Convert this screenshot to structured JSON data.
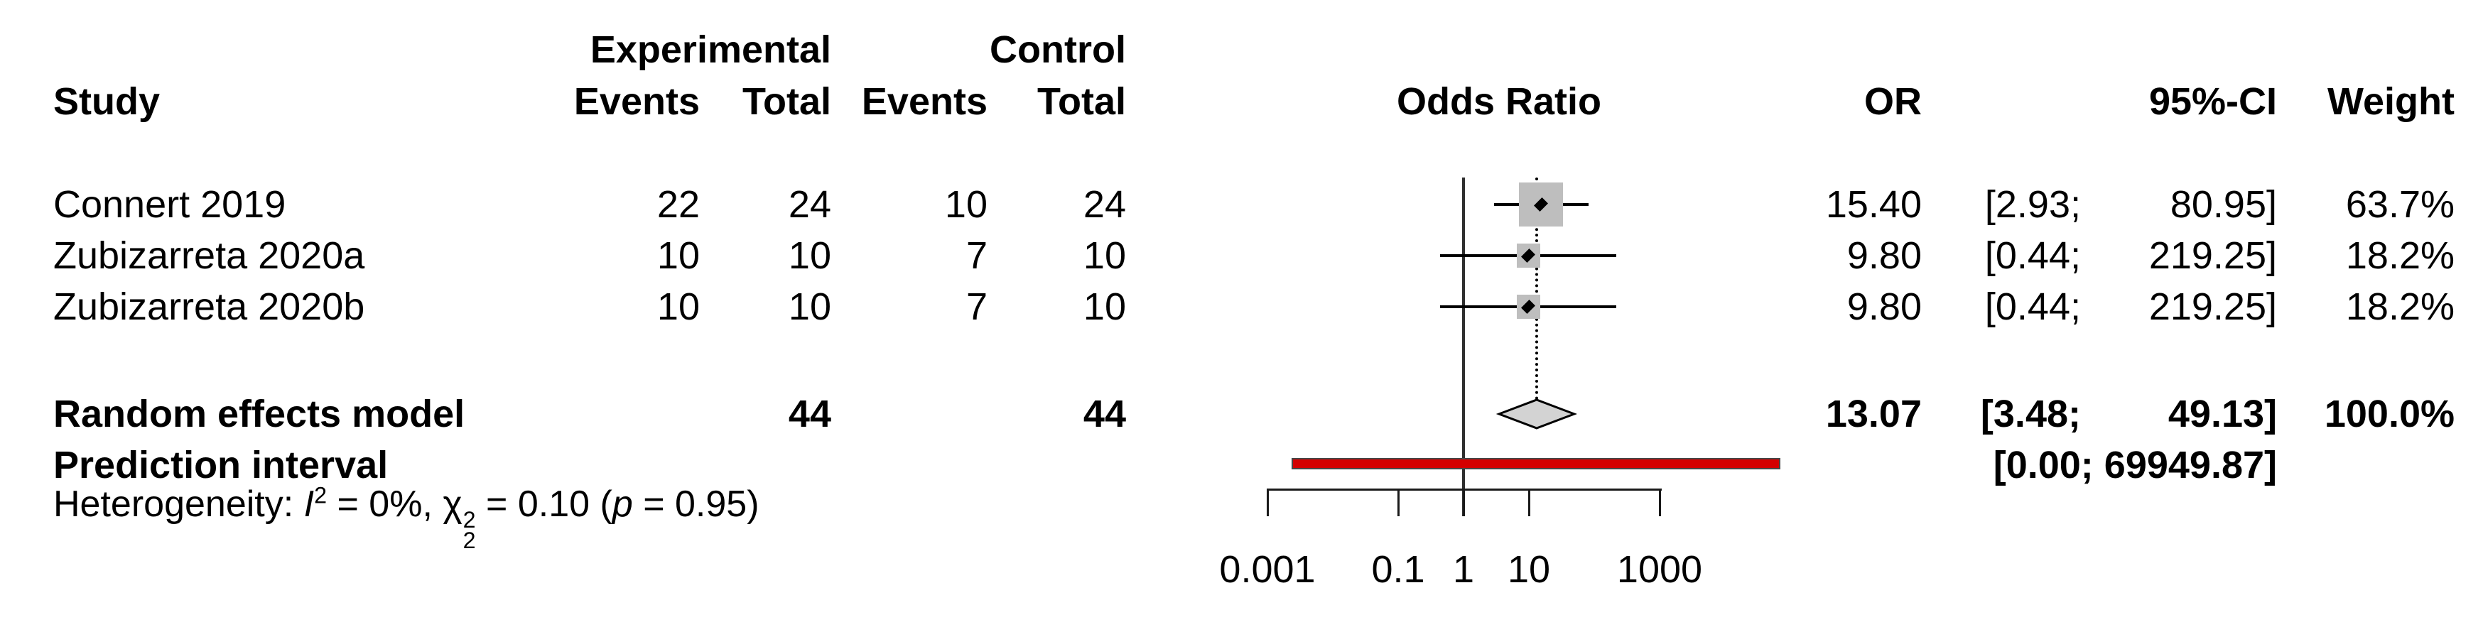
{
  "colors": {
    "background": "#ffffff",
    "text": "#000000",
    "square_fill": "#bebebe",
    "diamond_fill": "#d3d3d3",
    "diamond_border": "#000000",
    "prediction_fill": "#d40000",
    "prediction_border": "#474747",
    "line": "#000000"
  },
  "header": {
    "study": "Study",
    "experimental": "Experimental",
    "control": "Control",
    "exp_events": "Events",
    "exp_total": "Total",
    "ctrl_events": "Events",
    "ctrl_total": "Total",
    "odds_ratio": "Odds Ratio",
    "or": "OR",
    "ci": "95%-CI",
    "weight": "Weight"
  },
  "rows": [
    {
      "label": "Connert 2019",
      "exp_events": "22",
      "exp_total": "24",
      "ctrl_events": "10",
      "ctrl_total": "24",
      "or_text": "15.40",
      "ci_lo_text": "[2.93;",
      "ci_hi_text": "80.95]",
      "weight_text": "63.7%"
    },
    {
      "label": "Zubizarreta 2020a",
      "exp_events": "10",
      "exp_total": "10",
      "ctrl_events": "7",
      "ctrl_total": "10",
      "or_text": "9.80",
      "ci_lo_text": "[0.44;",
      "ci_hi_text": "219.25]",
      "weight_text": "18.2%"
    },
    {
      "label": "Zubizarreta 2020b",
      "exp_events": "10",
      "exp_total": "10",
      "ctrl_events": "7",
      "ctrl_total": "10",
      "or_text": "9.80",
      "ci_lo_text": "[0.44;",
      "ci_hi_text": "219.25]",
      "weight_text": "18.2%"
    }
  ],
  "summary_row": {
    "label": "Random effects model",
    "exp_total": "44",
    "ctrl_total": "44",
    "or_text": "13.07",
    "ci_lo_text": "[3.48;",
    "ci_hi_text": "49.13]",
    "weight_text": "100.0%"
  },
  "prediction_row": {
    "label": "Prediction interval",
    "ci_text": "[0.00; 69949.87]"
  },
  "het": {
    "prefix": "Heterogeneity: ",
    "i": "I",
    "i_sup": "2",
    "seg1": " = 0%, ",
    "chi": "χ",
    "chi_sup": "2",
    "chi_sub": "2",
    "seg2": " = 0.10 (",
    "p": "p",
    "seg3": " = 0.95)"
  },
  "axis_labels": [
    "0.001",
    "0.1",
    "1",
    "10",
    "1000"
  ],
  "chart_data": {
    "type": "forest",
    "scale": "log10",
    "xlabel": "Odds Ratio",
    "axis_ticks": [
      0.001,
      0.1,
      1,
      10,
      1000
    ],
    "xlim": [
      0.001,
      1000
    ],
    "ref_line": 1,
    "studies": [
      {
        "label": "Connert 2019",
        "exp_events": 22,
        "exp_total": 24,
        "ctrl_events": 10,
        "ctrl_total": 24,
        "or": 15.4,
        "ci_low": 2.93,
        "ci_high": 80.95,
        "weight_pct": 63.7
      },
      {
        "label": "Zubizarreta 2020a",
        "exp_events": 10,
        "exp_total": 10,
        "ctrl_events": 7,
        "ctrl_total": 10,
        "or": 9.8,
        "ci_low": 0.44,
        "ci_high": 219.25,
        "weight_pct": 18.2
      },
      {
        "label": "Zubizarreta 2020b",
        "exp_events": 10,
        "exp_total": 10,
        "ctrl_events": 7,
        "ctrl_total": 10,
        "or": 9.8,
        "ci_low": 0.44,
        "ci_high": 219.25,
        "weight_pct": 18.2
      }
    ],
    "summary": {
      "label": "Random effects model",
      "model": "random",
      "exp_total": 44,
      "ctrl_total": 44,
      "or": 13.07,
      "ci_low": 3.48,
      "ci_high": 49.13,
      "weight_pct": 100.0
    },
    "prediction_interval": {
      "label": "Prediction interval",
      "ci_low": 0.0,
      "ci_high": 69949.87
    },
    "heterogeneity": {
      "I2_pct": 0,
      "chi2": 0.1,
      "chi2_df": 2,
      "p": 0.95
    }
  }
}
